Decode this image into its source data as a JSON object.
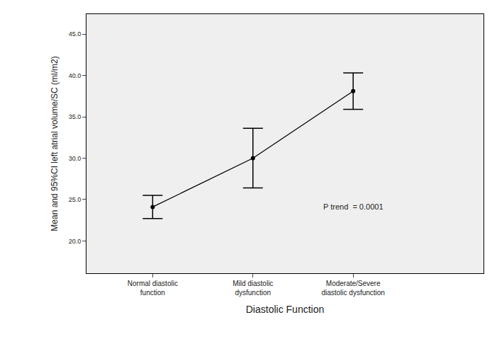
{
  "chart_data": {
    "type": "line",
    "x_label": "Diastolic Function",
    "y_label": "Mean and 95%CI left atrial volume/SC (ml/m2)",
    "categories": [
      "Normal diastolic\nfunction",
      "Mild diastolic\ndysfunction",
      "Moderate/Severe\ndiastolic dysfunction"
    ],
    "values": [
      24.1,
      30.0,
      38.1
    ],
    "ci_lower": [
      22.7,
      26.4,
      35.9
    ],
    "ci_upper": [
      25.5,
      33.6,
      40.3
    ],
    "color": "#000000",
    "marker": "circle",
    "ylim": [
      16.1,
      47.4
    ],
    "yticks": [
      {
        "value": 20,
        "label": "20.0"
      },
      {
        "value": 25,
        "label": "25.0"
      },
      {
        "value": 30,
        "label": "30.0"
      },
      {
        "value": 35,
        "label": "35.0"
      },
      {
        "value": 40,
        "label": "40.0"
      },
      {
        "value": 45,
        "label": "45.0"
      }
    ],
    "annotations": [
      {
        "text": "P trend  = 0.0001",
        "x": 2,
        "y": 24.1
      }
    ],
    "grid": false
  }
}
